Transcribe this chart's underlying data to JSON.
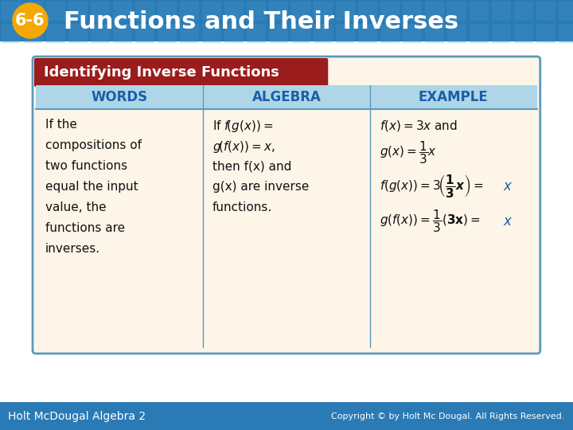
{
  "title": "Functions and Their Inverses",
  "title_number": "6-6",
  "header_bg": "#2a7ab5",
  "header_text_color": "#ffffff",
  "badge_bg": "#f5a800",
  "badge_text_color": "#ffffff",
  "table_title": "Identifying Inverse Functions",
  "table_title_bg": "#9b1c1c",
  "table_title_text": "#ffffff",
  "table_header_bg": "#aed6e8",
  "table_body_bg": "#fdf5e8",
  "table_border": "#5a9abf",
  "col_headers": [
    "WORDS",
    "ALGEBRA",
    "EXAMPLE"
  ],
  "col_header_color": "#1a5fa8",
  "footer_bg": "#2a7ab5",
  "footer_left": "Holt McDougal Algebra 2",
  "footer_right": "Copyright © by Holt Mc Dougal. All Rights Reserved.",
  "footer_text_color": "#ffffff",
  "main_bg": "#ffffff",
  "red_highlight": "#cc0000",
  "blue_italic": "#1a5fa8"
}
